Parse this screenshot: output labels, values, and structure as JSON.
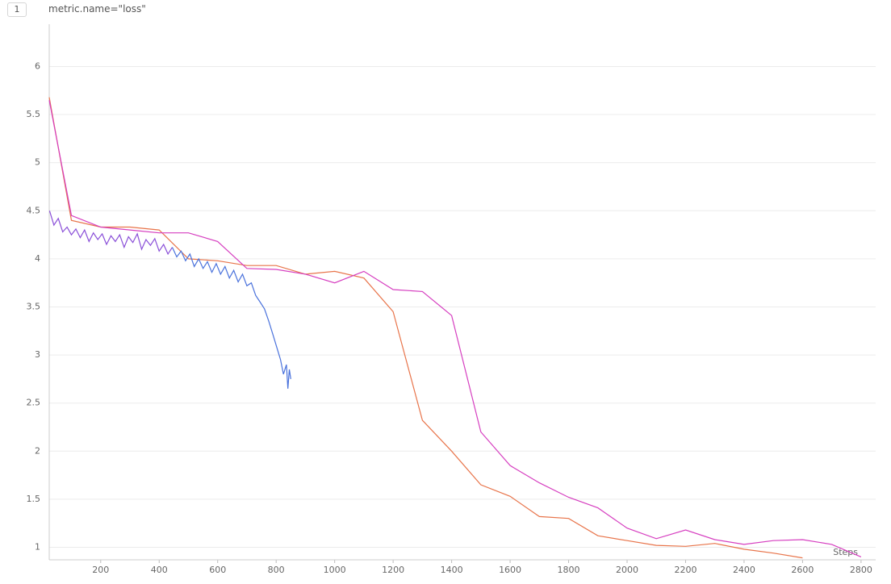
{
  "panel_index": "1",
  "chart_data": {
    "type": "line",
    "title": "metric.name=\"loss\"",
    "x_label": "Steps",
    "xlim": [
      24,
      2850
    ],
    "ylim": [
      0.87,
      6.44
    ],
    "xticks": [
      200,
      400,
      600,
      800,
      1000,
      1200,
      1400,
      1600,
      1800,
      2000,
      2200,
      2400,
      2600,
      2800
    ],
    "yticks": [
      1,
      1.5,
      2,
      2.5,
      3,
      3.5,
      4,
      4.5,
      5,
      5.5,
      6
    ],
    "grid": true,
    "series": [
      {
        "color": "#e8744a",
        "x": [
          24,
          100,
          200,
          300,
          400,
          500,
          600,
          700,
          800,
          900,
          1000,
          1100,
          1200,
          1300,
          1400,
          1500,
          1600,
          1700,
          1800,
          1900,
          2000,
          2100,
          2200,
          2300,
          2400,
          2500,
          2600
        ],
        "values": [
          5.68,
          4.4,
          4.33,
          4.33,
          4.3,
          4.0,
          3.98,
          3.93,
          3.93,
          3.84,
          3.87,
          3.8,
          3.45,
          2.32,
          2.0,
          1.65,
          1.53,
          1.32,
          1.3,
          1.12,
          1.07,
          1.02,
          1.01,
          1.04,
          0.98,
          0.94,
          0.89
        ]
      },
      {
        "color": "#d63fc0",
        "x": [
          24,
          100,
          200,
          300,
          400,
          500,
          600,
          700,
          800,
          900,
          1000,
          1100,
          1200,
          1300,
          1400,
          1500,
          1600,
          1700,
          1800,
          1900,
          2000,
          2100,
          2200,
          2300,
          2400,
          2500,
          2600,
          2700,
          2800
        ],
        "values": [
          5.65,
          4.45,
          4.33,
          4.3,
          4.27,
          4.27,
          4.18,
          3.9,
          3.89,
          3.84,
          3.75,
          3.87,
          3.68,
          3.66,
          3.41,
          2.2,
          1.85,
          1.67,
          1.52,
          1.41,
          1.2,
          1.09,
          1.18,
          1.08,
          1.03,
          1.07,
          1.08,
          1.03,
          0.9
        ]
      },
      {
        "color": "#8a4fd8",
        "x": [
          25,
          40,
          55,
          70,
          85,
          100,
          115,
          130,
          145,
          160,
          175,
          190,
          205,
          220,
          235,
          250,
          265,
          280,
          295,
          310,
          325,
          340,
          355,
          370,
          385,
          400,
          415,
          430,
          445
        ],
        "values": [
          4.5,
          4.35,
          4.42,
          4.28,
          4.33,
          4.25,
          4.31,
          4.22,
          4.3,
          4.18,
          4.27,
          4.2,
          4.26,
          4.15,
          4.24,
          4.18,
          4.25,
          4.12,
          4.23,
          4.17,
          4.26,
          4.1,
          4.2,
          4.14,
          4.21,
          4.08,
          4.15,
          4.05,
          4.12
        ]
      },
      {
        "color": "#4a72dc",
        "x": [
          445,
          460,
          475,
          490,
          505,
          520,
          535,
          550,
          565,
          580,
          595,
          610,
          625,
          640,
          655,
          670,
          685,
          700,
          715,
          730,
          745,
          760,
          775,
          790,
          805,
          815,
          825,
          835,
          840,
          845,
          850
        ],
        "values": [
          4.12,
          4.02,
          4.08,
          3.98,
          4.05,
          3.92,
          4.0,
          3.9,
          3.97,
          3.86,
          3.95,
          3.84,
          3.92,
          3.8,
          3.88,
          3.76,
          3.84,
          3.72,
          3.75,
          3.62,
          3.55,
          3.48,
          3.35,
          3.2,
          3.05,
          2.95,
          2.8,
          2.9,
          2.65,
          2.85,
          2.75
        ]
      }
    ]
  }
}
